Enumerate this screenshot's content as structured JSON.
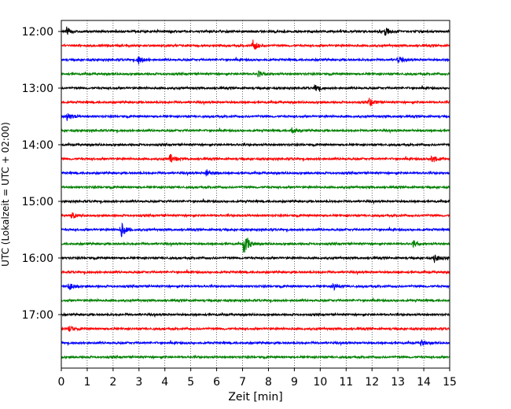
{
  "chart_data": {
    "type": "line",
    "chart_kind": "helicorder seismogram",
    "xlabel": "Zeit  [min]",
    "ylabel": "UTC (Lokalzeit = UTC + 02:00)",
    "xlim": [
      0,
      15
    ],
    "x_ticks": [
      "0",
      "1",
      "2",
      "3",
      "4",
      "5",
      "6",
      "7",
      "8",
      "9",
      "10",
      "11",
      "12",
      "13",
      "14",
      "15"
    ],
    "y_tick_labels": [
      "12:00",
      "13:00",
      "14:00",
      "15:00",
      "16:00",
      "17:00"
    ],
    "trace_minutes_per_line": 15,
    "trace_start_times": [
      "12:00",
      "12:15",
      "12:30",
      "12:45",
      "13:00",
      "13:15",
      "13:30",
      "13:45",
      "14:00",
      "14:15",
      "14:30",
      "14:45",
      "15:00",
      "15:15",
      "15:30",
      "15:45",
      "16:00",
      "16:15",
      "16:30",
      "16:45",
      "17:00",
      "17:15",
      "17:30",
      "17:45"
    ],
    "trace_colors": [
      "#000000",
      "#ff0000",
      "#0000ff",
      "#008000"
    ],
    "vertical_grid": "dotted, every 1 min",
    "events": [
      {
        "trace": 0,
        "minute": 0.2,
        "amp": 0.35
      },
      {
        "trace": 0,
        "minute": 12.5,
        "amp": 0.4
      },
      {
        "trace": 1,
        "minute": 7.4,
        "amp": 0.55
      },
      {
        "trace": 2,
        "minute": 2.95,
        "amp": 0.45
      },
      {
        "trace": 2,
        "minute": 13.0,
        "amp": 0.3
      },
      {
        "trace": 3,
        "minute": 7.6,
        "amp": 0.25
      },
      {
        "trace": 4,
        "minute": 9.8,
        "amp": 0.3
      },
      {
        "trace": 5,
        "minute": 11.9,
        "amp": 0.35
      },
      {
        "trace": 6,
        "minute": 0.2,
        "amp": 0.45
      },
      {
        "trace": 7,
        "minute": 8.9,
        "amp": 0.3
      },
      {
        "trace": 9,
        "minute": 4.2,
        "amp": 0.4
      },
      {
        "trace": 9,
        "minute": 14.3,
        "amp": 0.4
      },
      {
        "trace": 10,
        "minute": 5.6,
        "amp": 0.35
      },
      {
        "trace": 13,
        "minute": 0.4,
        "amp": 0.3
      },
      {
        "trace": 14,
        "minute": 2.3,
        "amp": 0.7
      },
      {
        "trace": 15,
        "minute": 7.05,
        "amp": 1.1
      },
      {
        "trace": 15,
        "minute": 13.6,
        "amp": 0.3
      },
      {
        "trace": 16,
        "minute": 14.4,
        "amp": 0.45
      },
      {
        "trace": 18,
        "minute": 0.3,
        "amp": 0.3
      },
      {
        "trace": 18,
        "minute": 10.5,
        "amp": 0.35
      },
      {
        "trace": 21,
        "minute": 0.3,
        "amp": 0.3
      },
      {
        "trace": 22,
        "minute": 13.9,
        "amp": 0.3
      }
    ]
  }
}
